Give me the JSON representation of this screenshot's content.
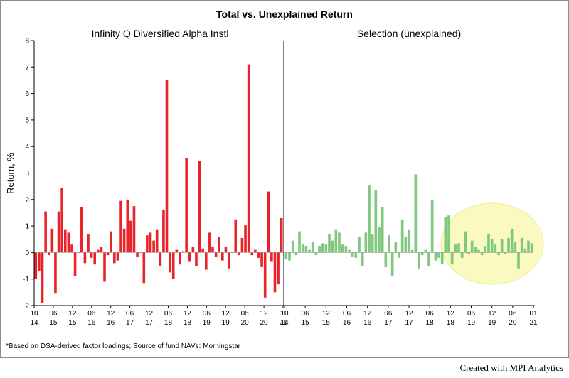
{
  "chart_data": {
    "type": "bar",
    "title": "Total vs. Unexplained Return",
    "ylabel": "Return, %",
    "ylim": [
      -2,
      8
    ],
    "yticks": [
      -2,
      -1,
      0,
      1,
      2,
      3,
      4,
      5,
      6,
      7,
      8
    ],
    "footnote": "*Based on DSA-derived factor loadings; Source of fund NAVs: Morningstar",
    "series": [
      {
        "name": "Infinity Q Diversified Alpha Instl",
        "color": "#e8232a",
        "x_tick_labels": [
          [
            "10",
            "14"
          ],
          [
            "06",
            "15"
          ],
          [
            "12",
            "15"
          ],
          [
            "06",
            "16"
          ],
          [
            "12",
            "16"
          ],
          [
            "06",
            "17"
          ],
          [
            "12",
            "17"
          ],
          [
            "06",
            "18"
          ],
          [
            "12",
            "18"
          ],
          [
            "06",
            "19"
          ],
          [
            "12",
            "19"
          ],
          [
            "06",
            "20"
          ],
          [
            "12",
            "20"
          ],
          [
            "01",
            "21"
          ]
        ],
        "values": [
          -1.0,
          -0.7,
          -1.9,
          1.55,
          -0.1,
          0.9,
          -1.55,
          1.55,
          2.45,
          0.85,
          0.75,
          0.3,
          -0.9,
          0.0,
          1.7,
          -0.4,
          0.7,
          -0.2,
          -0.45,
          0.1,
          0.2,
          -1.1,
          -0.1,
          0.8,
          -0.4,
          -0.3,
          1.95,
          0.9,
          2.0,
          1.2,
          1.75,
          -0.15,
          0.0,
          -1.15,
          0.65,
          0.75,
          0.45,
          0.85,
          -0.5,
          1.6,
          6.5,
          -0.75,
          -1.0,
          0.1,
          -0.45,
          0.05,
          3.55,
          -0.35,
          0.2,
          -0.5,
          3.45,
          0.15,
          -0.65,
          0.75,
          0.2,
          -0.15,
          0.6,
          -0.3,
          0.2,
          -0.6,
          0.0,
          1.25,
          -0.1,
          0.55,
          1.05,
          7.1,
          -0.1,
          0.1,
          -0.2,
          -0.55,
          -1.7,
          2.3,
          -0.35,
          -1.5,
          -1.2,
          1.3
        ]
      },
      {
        "name": "Selection (unexplained)",
        "color": "#7fc97f",
        "x_tick_labels": [
          [
            "10",
            "14"
          ],
          [
            "06",
            "15"
          ],
          [
            "12",
            "15"
          ],
          [
            "06",
            "16"
          ],
          [
            "12",
            "16"
          ],
          [
            "06",
            "17"
          ],
          [
            "12",
            "17"
          ],
          [
            "06",
            "18"
          ],
          [
            "12",
            "18"
          ],
          [
            "06",
            "19"
          ],
          [
            "12",
            "19"
          ],
          [
            "06",
            "20"
          ],
          [
            "01",
            "21"
          ]
        ],
        "values": [
          -0.25,
          -0.3,
          0.45,
          -0.1,
          0.8,
          0.3,
          0.25,
          0.1,
          0.4,
          -0.1,
          0.25,
          0.35,
          0.3,
          0.7,
          0.45,
          0.85,
          0.75,
          0.3,
          0.25,
          0.1,
          -0.15,
          -0.2,
          0.6,
          -0.5,
          0.75,
          2.55,
          0.7,
          2.35,
          0.95,
          1.7,
          -0.55,
          0.65,
          -0.9,
          0.4,
          -0.2,
          1.25,
          0.6,
          0.85,
          0.1,
          2.95,
          -0.6,
          -0.1,
          0.1,
          -0.5,
          2.0,
          -0.3,
          -0.2,
          -0.45,
          1.35,
          1.4,
          -0.45,
          0.3,
          0.35,
          -0.2,
          0.8,
          -0.05,
          0.45,
          0.2,
          0.1,
          -0.1,
          0.25,
          0.7,
          0.5,
          0.3,
          -0.1,
          0.5,
          -0.05,
          0.55,
          0.9,
          0.4,
          -0.6,
          0.55,
          0.15,
          0.45,
          0.35
        ]
      }
    ],
    "annotation": "yellow ellipse highlighting recent selection returns"
  },
  "credit": "Created with MPI Analytics"
}
